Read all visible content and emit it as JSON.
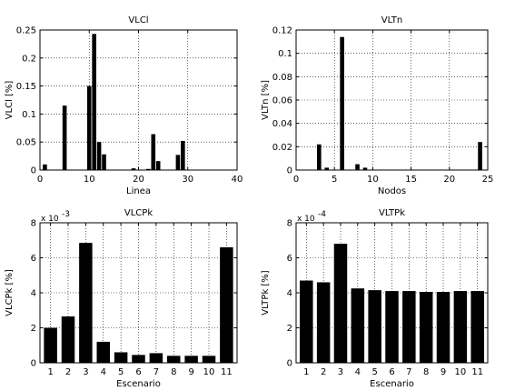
{
  "chart_data": [
    {
      "type": "bar",
      "title": "VLCl",
      "xlabel": "Linea",
      "ylabel": "VLCl [%]",
      "xlim": [
        0,
        40
      ],
      "ylim": [
        0,
        0.25
      ],
      "xticks": [
        0,
        10,
        20,
        30,
        40
      ],
      "yticks": [
        0,
        0.05,
        0.1,
        0.15,
        0.2,
        0.25
      ],
      "xtick_labels": [
        "0",
        "10",
        "20",
        "30",
        "40"
      ],
      "ytick_labels": [
        "0",
        "0.05",
        "0.1",
        "0.15",
        "0.2",
        "0.25"
      ],
      "grid": true,
      "bar_color": "#000000",
      "x": [
        1,
        5,
        10,
        11,
        12,
        13,
        19,
        22,
        23,
        24,
        28,
        29
      ],
      "values": [
        0.01,
        0.115,
        0.15,
        0.243,
        0.05,
        0.028,
        0.003,
        0.002,
        0.064,
        0.016,
        0.027,
        0.052
      ]
    },
    {
      "type": "bar",
      "title": "VLTn",
      "xlabel": "Nodos",
      "ylabel": "VLTn [%]",
      "xlim": [
        0,
        25
      ],
      "ylim": [
        0,
        0.12
      ],
      "xticks": [
        0,
        5,
        10,
        15,
        20,
        25
      ],
      "yticks": [
        0,
        0.02,
        0.04,
        0.06,
        0.08,
        0.1,
        0.12
      ],
      "xtick_labels": [
        "0",
        "5",
        "10",
        "15",
        "20",
        "25"
      ],
      "ytick_labels": [
        "0",
        "0.02",
        "0.04",
        "0.06",
        "0.08",
        "0.1",
        "0.12"
      ],
      "grid": true,
      "bar_color": "#000000",
      "x": [
        3,
        4,
        6,
        8,
        9,
        24
      ],
      "values": [
        0.022,
        0.002,
        0.114,
        0.005,
        0.002,
        0.024
      ]
    },
    {
      "type": "bar",
      "title": "VLCPk",
      "xlabel": "Escenario",
      "ylabel": "VLCPk [%]",
      "y_exponent_base": "x 10",
      "y_exponent_power": "-3",
      "xlim": [
        0.4,
        11.6
      ],
      "ylim": [
        0,
        8
      ],
      "xticks": [
        1,
        2,
        3,
        4,
        5,
        6,
        7,
        8,
        9,
        10,
        11
      ],
      "yticks": [
        0,
        2,
        4,
        6,
        8
      ],
      "xtick_labels": [
        "1",
        "2",
        "3",
        "4",
        "5",
        "6",
        "7",
        "8",
        "9",
        "10",
        "11"
      ],
      "ytick_labels": [
        "0",
        "2",
        "4",
        "6",
        "8"
      ],
      "grid": true,
      "bar_color": "#000000",
      "x": [
        1,
        2,
        3,
        4,
        5,
        6,
        7,
        8,
        9,
        10,
        11
      ],
      "values": [
        2.0,
        2.65,
        6.85,
        1.2,
        0.6,
        0.45,
        0.55,
        0.4,
        0.4,
        0.4,
        6.6
      ]
    },
    {
      "type": "bar",
      "title": "VLTPk",
      "xlabel": "Escenario",
      "ylabel": "VLTPk [%]",
      "y_exponent_base": "x 10",
      "y_exponent_power": "-4",
      "xlim": [
        0.4,
        11.6
      ],
      "ylim": [
        0,
        8
      ],
      "xticks": [
        1,
        2,
        3,
        4,
        5,
        6,
        7,
        8,
        9,
        10,
        11
      ],
      "yticks": [
        0,
        2,
        4,
        6,
        8
      ],
      "xtick_labels": [
        "1",
        "2",
        "3",
        "4",
        "5",
        "6",
        "7",
        "8",
        "9",
        "10",
        "11"
      ],
      "ytick_labels": [
        "0",
        "2",
        "4",
        "6",
        "8"
      ],
      "grid": true,
      "bar_color": "#000000",
      "x": [
        1,
        2,
        3,
        4,
        5,
        6,
        7,
        8,
        9,
        10,
        11
      ],
      "values": [
        4.7,
        4.6,
        6.8,
        4.25,
        4.15,
        4.1,
        4.1,
        4.05,
        4.05,
        4.1,
        4.1
      ]
    }
  ]
}
